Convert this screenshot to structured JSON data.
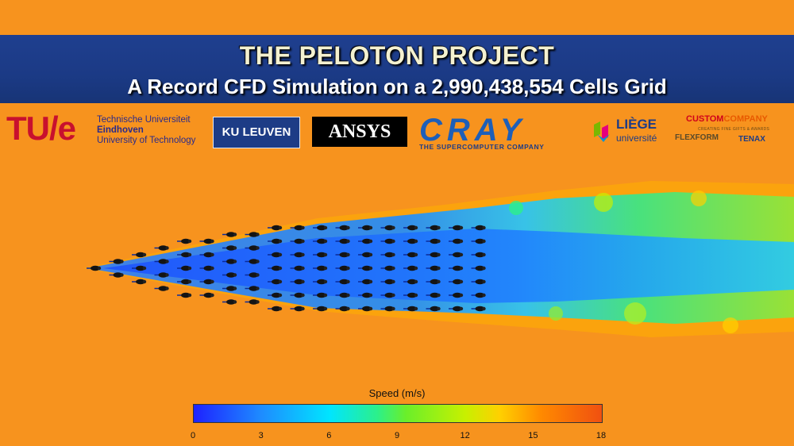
{
  "banner": {
    "title": "THE PELOTON PROJECT",
    "subtitle": "A Record CFD Simulation on a 2,990,438,554 Cells Grid"
  },
  "logos": {
    "tue_mark": "TU/e",
    "tue_line1": "Technische Universiteit",
    "tue_line2": "Eindhoven",
    "tue_line3": "University of Technology",
    "kuleuven": "KU LEUVEN",
    "ansys": "ANSYS",
    "cray": "CRAY",
    "cray_tagline": "THE SUPERCOMPUTER COMPANY",
    "liege_line1": "LIÈGE",
    "liege_line2": "université",
    "custom_part1": "CUSTOM",
    "custom_part2": "COMPANY",
    "custom_tagline": "CREATING FINE GIFTS & AWARDS",
    "flexform": "FLEXFORM",
    "tenax": "TENAX"
  },
  "colorbar": {
    "title": "Speed (m/s)",
    "ticks": [
      "0",
      "3",
      "6",
      "9",
      "12",
      "15",
      "18"
    ],
    "range": [
      0,
      18
    ]
  },
  "peloton": {
    "riders_per_row": [
      1,
      2,
      3,
      4,
      5,
      5,
      6,
      6,
      7,
      7,
      7,
      7,
      7,
      7,
      7,
      7,
      7,
      7
    ]
  },
  "colors": {
    "background": "#f7931e",
    "banner": "#1b3a85",
    "wake_low": "#1e8cff",
    "wake_mid": "#2cf08a"
  }
}
